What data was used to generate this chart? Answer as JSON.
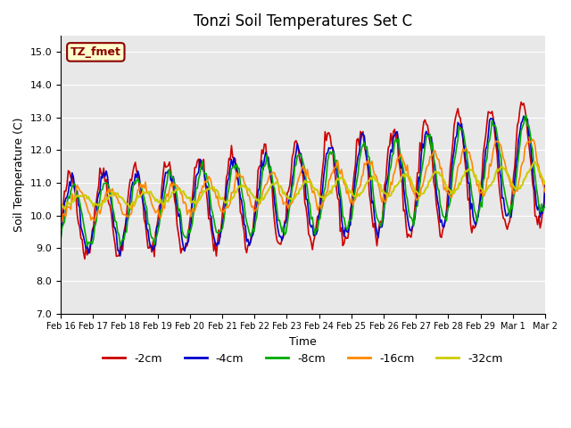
{
  "title": "Tonzi Soil Temperatures Set C",
  "xlabel": "Time",
  "ylabel": "Soil Temperature (C)",
  "ylim": [
    7.0,
    15.5
  ],
  "yticks": [
    7.0,
    8.0,
    9.0,
    10.0,
    11.0,
    12.0,
    13.0,
    14.0,
    15.0
  ],
  "bg_color": "#e8e8e8",
  "annotation_text": "TZ_fmet",
  "annotation_color": "#8b0000",
  "annotation_bg": "#ffffcc",
  "annotation_border": "#8b0000",
  "series_colors": {
    "-2cm": "#cc0000",
    "-4cm": "#0000cc",
    "-8cm": "#00aa00",
    "-16cm": "#ff8800",
    "-32cm": "#cccc00"
  },
  "legend_labels": [
    "-2cm",
    "-4cm",
    "-8cm",
    "-16cm",
    "-32cm"
  ],
  "x_tick_labels": [
    "Feb 16",
    "Feb 17",
    "Feb 18",
    "Feb 19",
    "Feb 20",
    "Feb 21",
    "Feb 22",
    "Feb 23",
    "Feb 24",
    "Feb 25",
    "Feb 26",
    "Feb 27",
    "Feb 28",
    "Feb 29",
    "Mar 1",
    "Mar 2"
  ],
  "n_points": 384,
  "days": 15
}
